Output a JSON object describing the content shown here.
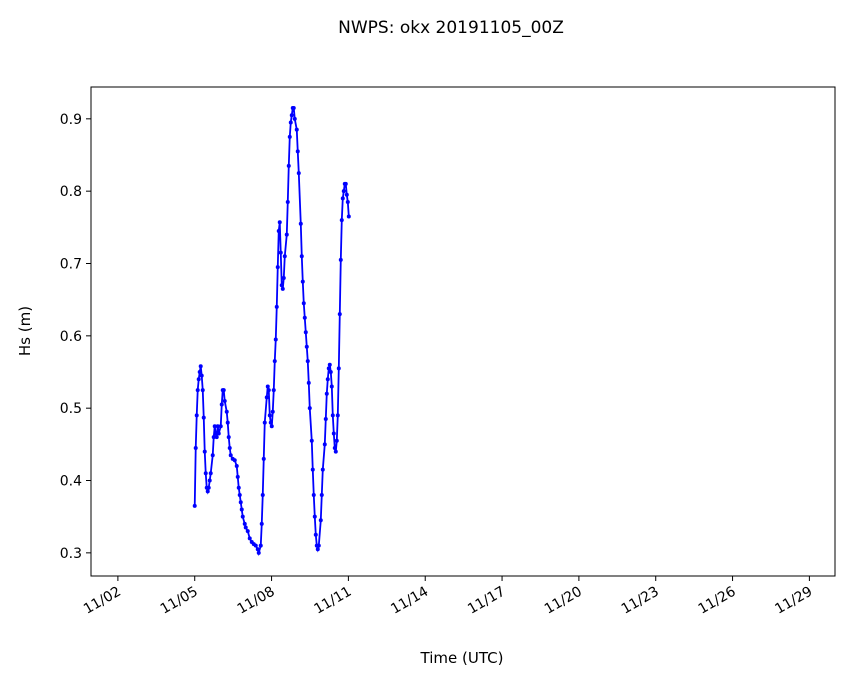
{
  "chart_data": {
    "type": "line",
    "title": "NWPS: okx 20191105_00Z",
    "xlabel": "Time (UTC)",
    "ylabel": "Hs (m)",
    "x": [
      5.0,
      5.039,
      5.078,
      5.117,
      5.156,
      5.195,
      5.234,
      5.273,
      5.313,
      5.352,
      5.391,
      5.43,
      5.469,
      5.508,
      5.547,
      5.586,
      5.625,
      5.703,
      5.742,
      5.781,
      5.82,
      5.859,
      5.898,
      5.938,
      6.016,
      6.055,
      6.094,
      6.133,
      6.172,
      6.25,
      6.289,
      6.328,
      6.367,
      6.406,
      6.484,
      6.563,
      6.641,
      6.68,
      6.719,
      6.758,
      6.797,
      6.836,
      6.875,
      6.953,
      6.992,
      7.07,
      7.148,
      7.227,
      7.305,
      7.383,
      7.461,
      7.5,
      7.578,
      7.617,
      7.656,
      7.695,
      7.734,
      7.813,
      7.852,
      7.891,
      7.93,
      7.969,
      8.008,
      8.047,
      8.086,
      8.125,
      8.164,
      8.203,
      8.242,
      8.281,
      8.32,
      8.359,
      8.398,
      8.438,
      8.477,
      8.516,
      8.594,
      8.633,
      8.672,
      8.711,
      8.75,
      8.789,
      8.828,
      8.867,
      8.906,
      8.984,
      9.023,
      9.063,
      9.141,
      9.18,
      9.219,
      9.258,
      9.297,
      9.336,
      9.375,
      9.414,
      9.453,
      9.492,
      9.57,
      9.609,
      9.648,
      9.688,
      9.727,
      9.766,
      9.805,
      9.844,
      9.922,
      9.961,
      10.0,
      10.078,
      10.117,
      10.156,
      10.195,
      10.234,
      10.273,
      10.313,
      10.352,
      10.391,
      10.43,
      10.469,
      10.508,
      10.547,
      10.586,
      10.625,
      10.664,
      10.703,
      10.742,
      10.781,
      10.82,
      10.859,
      10.898,
      10.938,
      10.977,
      11.016
    ],
    "series": [
      {
        "color": "#0000ff",
        "values": [
          0.365,
          0.445,
          0.49,
          0.525,
          0.54,
          0.55,
          0.558,
          0.545,
          0.525,
          0.487,
          0.44,
          0.41,
          0.39,
          0.385,
          0.39,
          0.4,
          0.41,
          0.435,
          0.46,
          0.475,
          0.465,
          0.46,
          0.475,
          0.465,
          0.475,
          0.505,
          0.525,
          0.525,
          0.51,
          0.495,
          0.48,
          0.46,
          0.445,
          0.435,
          0.43,
          0.428,
          0.42,
          0.405,
          0.39,
          0.38,
          0.37,
          0.36,
          0.35,
          0.34,
          0.335,
          0.33,
          0.32,
          0.315,
          0.312,
          0.31,
          0.305,
          0.3,
          0.31,
          0.34,
          0.38,
          0.43,
          0.48,
          0.515,
          0.53,
          0.525,
          0.49,
          0.48,
          0.475,
          0.495,
          0.525,
          0.565,
          0.595,
          0.64,
          0.695,
          0.745,
          0.757,
          0.715,
          0.67,
          0.665,
          0.68,
          0.71,
          0.74,
          0.785,
          0.835,
          0.875,
          0.895,
          0.905,
          0.915,
          0.915,
          0.9,
          0.885,
          0.855,
          0.825,
          0.755,
          0.71,
          0.675,
          0.645,
          0.625,
          0.605,
          0.585,
          0.565,
          0.535,
          0.5,
          0.455,
          0.415,
          0.38,
          0.35,
          0.325,
          0.31,
          0.305,
          0.31,
          0.345,
          0.38,
          0.415,
          0.45,
          0.485,
          0.52,
          0.54,
          0.555,
          0.56,
          0.55,
          0.53,
          0.49,
          0.465,
          0.445,
          0.44,
          0.455,
          0.49,
          0.555,
          0.63,
          0.705,
          0.76,
          0.79,
          0.8,
          0.81,
          0.81,
          0.795,
          0.785,
          0.765
        ]
      }
    ],
    "xlim": [
      0.95,
      30.0
    ],
    "xticks": [
      {
        "value": 2,
        "label": "11/02"
      },
      {
        "value": 5,
        "label": "11/05"
      },
      {
        "value": 8,
        "label": "11/08"
      },
      {
        "value": 11,
        "label": "11/11"
      },
      {
        "value": 14,
        "label": "11/14"
      },
      {
        "value": 17,
        "label": "11/17"
      },
      {
        "value": 20,
        "label": "11/20"
      },
      {
        "value": 23,
        "label": "11/23"
      },
      {
        "value": 26,
        "label": "11/26"
      },
      {
        "value": 29,
        "label": "11/29"
      }
    ],
    "ylim": [
      0.268,
      0.944
    ],
    "yticks": [
      0.3,
      0.4,
      0.5,
      0.6,
      0.7,
      0.8,
      0.9
    ],
    "grid": false
  }
}
